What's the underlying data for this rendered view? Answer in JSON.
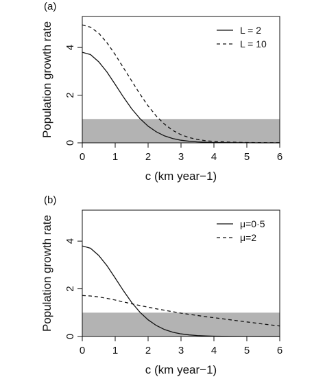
{
  "chart_data": [
    {
      "panel_label": "(a)",
      "type": "line",
      "xlabel": "c (km year−1)",
      "ylabel": "Population growth rate",
      "xlim": [
        0,
        6
      ],
      "ylim": [
        0,
        5.3
      ],
      "xticks": [
        0,
        1,
        2,
        3,
        4,
        5,
        6
      ],
      "yticks": [
        0,
        2,
        4
      ],
      "grid": false,
      "legend_position": "top-right",
      "shaded_band": {
        "y_from": 0,
        "y_to": 1,
        "color": "#b3b3b3"
      },
      "x": [
        0,
        0.25,
        0.5,
        0.75,
        1.0,
        1.25,
        1.5,
        1.75,
        2.0,
        2.25,
        2.5,
        2.75,
        3.0,
        3.25,
        3.5,
        3.75,
        4.0,
        4.5,
        5.0,
        5.5,
        6.0
      ],
      "series": [
        {
          "name": "L = 2",
          "style": "solid",
          "values": [
            3.8,
            3.7,
            3.4,
            2.97,
            2.45,
            1.92,
            1.43,
            1.02,
            0.7,
            0.46,
            0.29,
            0.18,
            0.11,
            0.065,
            0.04,
            0.025,
            0.015,
            0.006,
            0.002,
            0.001,
            0.0
          ]
        },
        {
          "name": "L = 10",
          "style": "dashed",
          "values": [
            4.95,
            4.85,
            4.6,
            4.2,
            3.7,
            3.15,
            2.6,
            2.05,
            1.55,
            1.12,
            0.78,
            0.52,
            0.34,
            0.22,
            0.14,
            0.09,
            0.06,
            0.03,
            0.015,
            0.008,
            0.005
          ]
        }
      ]
    },
    {
      "panel_label": "(b)",
      "type": "line",
      "xlabel": "c (km year−1)",
      "ylabel": "Population growth rate",
      "xlim": [
        0,
        6
      ],
      "ylim": [
        0,
        5.3
      ],
      "xticks": [
        0,
        1,
        2,
        3,
        4,
        5,
        6
      ],
      "yticks": [
        0,
        2,
        4
      ],
      "grid": false,
      "legend_position": "top-right",
      "shaded_band": {
        "y_from": 0,
        "y_to": 1,
        "color": "#b3b3b3"
      },
      "x": [
        0,
        0.25,
        0.5,
        0.75,
        1.0,
        1.25,
        1.5,
        1.75,
        2.0,
        2.25,
        2.5,
        2.75,
        3.0,
        3.25,
        3.5,
        3.75,
        4.0,
        4.5,
        5.0,
        5.5,
        6.0
      ],
      "series": [
        {
          "name": "μ=0·5",
          "style": "solid",
          "values": [
            3.8,
            3.7,
            3.4,
            2.97,
            2.45,
            1.92,
            1.43,
            1.02,
            0.7,
            0.46,
            0.29,
            0.18,
            0.11,
            0.065,
            0.04,
            0.025,
            0.015,
            0.006,
            0.002,
            0.001,
            0.0
          ]
        },
        {
          "name": "μ=2",
          "style": "dashed",
          "values": [
            1.72,
            1.7,
            1.66,
            1.6,
            1.53,
            1.45,
            1.37,
            1.3,
            1.23,
            1.16,
            1.1,
            1.04,
            0.98,
            0.93,
            0.88,
            0.83,
            0.79,
            0.7,
            0.61,
            0.52,
            0.44
          ]
        }
      ]
    }
  ]
}
